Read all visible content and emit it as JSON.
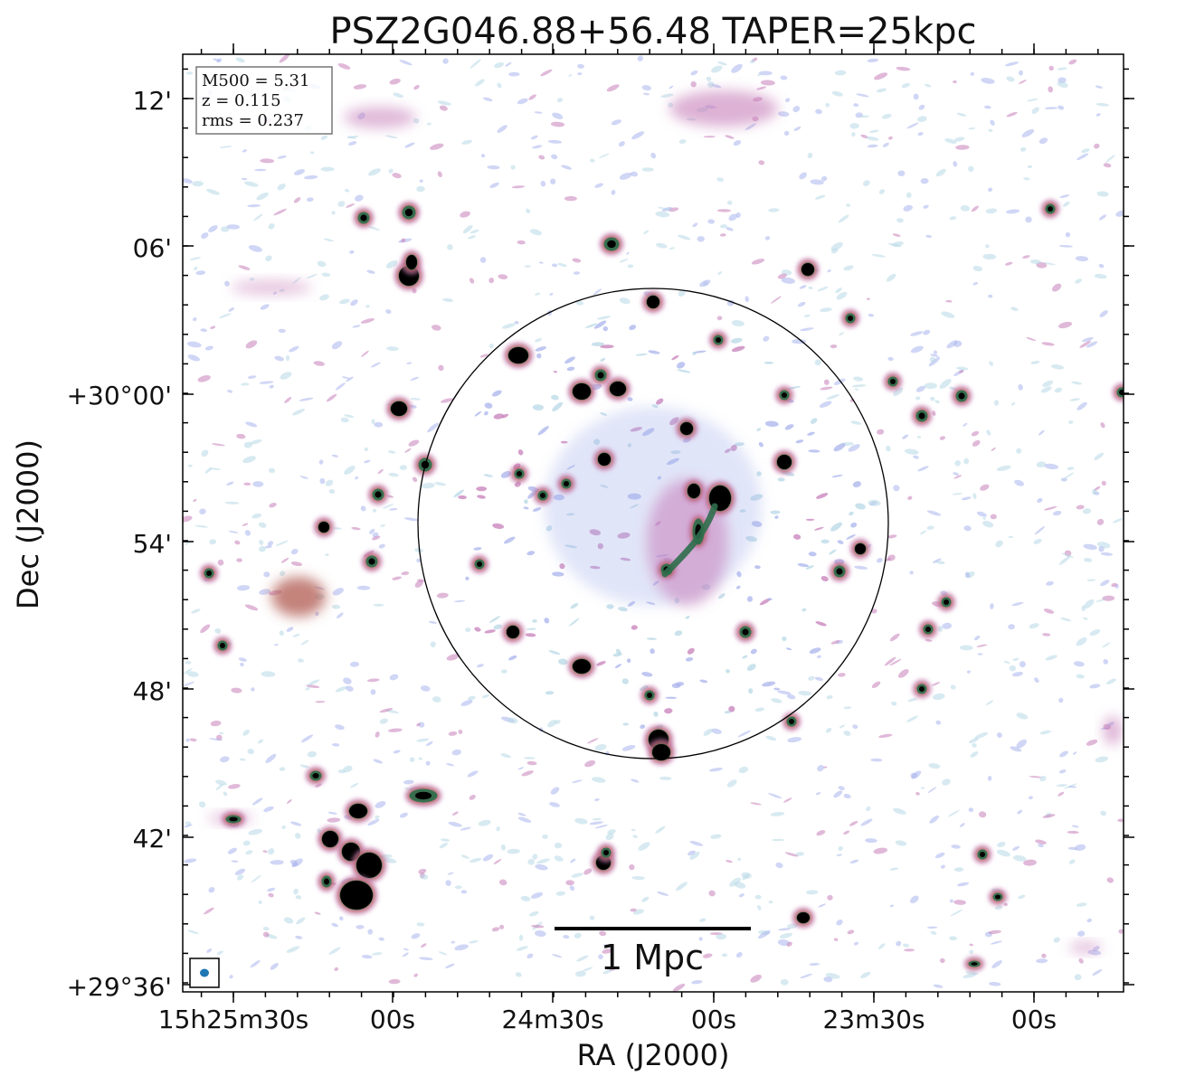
{
  "figure": {
    "title": "PSZ2G046.88+56.48 TAPER=25kpc",
    "xlabel": "RA (J2000)",
    "ylabel": "Dec (J2000)",
    "x_ticks": [
      "15h25m30s",
      "00s",
      "24m30s",
      "00s",
      "23m30s",
      "00s"
    ],
    "y_ticks": [
      "12'",
      "06'",
      "+30°00'",
      "54'",
      "48'",
      "42'",
      "+29°36'"
    ],
    "info_box": {
      "m500": "M500 = 5.31",
      "z": "z = 0.115",
      "rms": "rms = 0.237"
    },
    "scale_bar_label": "1 Mpc"
  },
  "colors": {
    "noise_light": "#b8d8e6",
    "noise_blue": "#a9b4ec",
    "emission_pink": "#c77fb9",
    "emission_red": "#b0584f",
    "core_green": "#2f6e4c",
    "source_black": "#000000",
    "beam": "#1f77b4"
  }
}
